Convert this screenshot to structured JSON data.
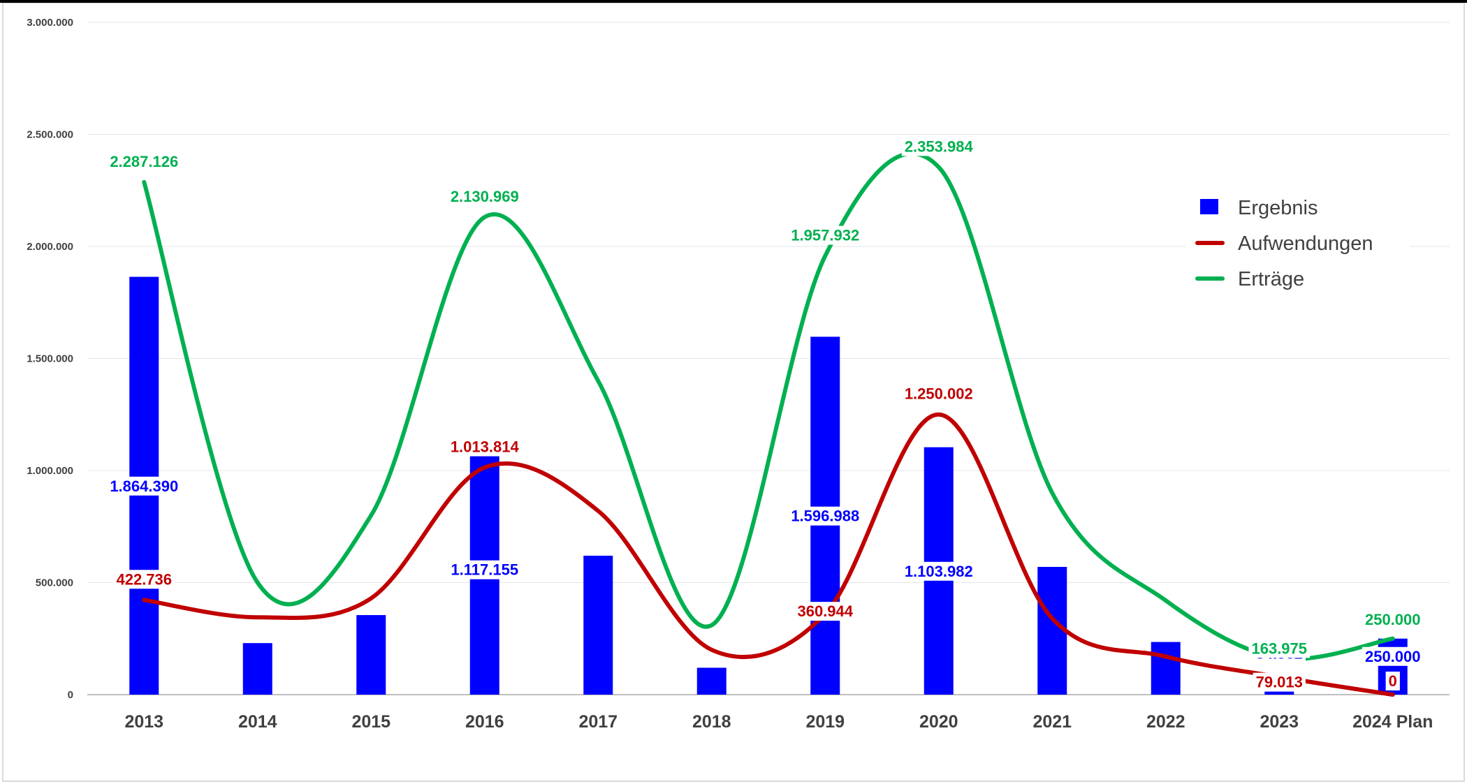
{
  "chart_data": {
    "type": "bar",
    "categories": [
      "2013",
      "2014",
      "2015",
      "2016",
      "2017",
      "2018",
      "2019",
      "2020",
      "2021",
      "2022",
      "2023",
      "2024 Plan"
    ],
    "ylim": [
      0,
      3000000
    ],
    "y_ticks": [
      0,
      500000,
      1000000,
      1500000,
      2000000,
      2500000,
      3000000
    ],
    "y_tick_labels": [
      "0",
      "500.000",
      "1.000.000",
      "1.500.000",
      "2.000.000",
      "2.500.000",
      "3.000.000"
    ],
    "grid": true,
    "legend_position": "top-right",
    "series": [
      {
        "name": "Ergebnis",
        "kind": "bar",
        "color": "#0000ff",
        "values": [
          1864390,
          230000,
          355000,
          1117155,
          620000,
          120000,
          1596988,
          1103982,
          570000,
          235000,
          84962,
          250000
        ],
        "data_labels": [
          "1.864.390",
          "",
          "",
          "1.117.155",
          "",
          "",
          "1.596.988",
          "1.103.982",
          "",
          "",
          "84.962",
          "250.000"
        ]
      },
      {
        "name": "Aufwendungen",
        "kind": "line",
        "color": "#c00000",
        "values": [
          422736,
          345000,
          430000,
          1013814,
          820000,
          200000,
          360944,
          1250002,
          340000,
          170000,
          79013,
          0
        ],
        "data_labels": [
          "422.736",
          "",
          "",
          "1.013.814",
          "",
          "",
          "360.944",
          "1.250.002",
          "",
          "",
          "79.013",
          "0"
        ]
      },
      {
        "name": "Erträge",
        "kind": "line",
        "color": "#00b050",
        "values": [
          2287126,
          500000,
          800000,
          2130969,
          1400000,
          310000,
          1957932,
          2353984,
          900000,
          420000,
          163975,
          250000
        ],
        "data_labels": [
          "2.287.126",
          "",
          "",
          "2.130.969",
          "",
          "",
          "1.957.932",
          "2.353.984",
          "",
          "",
          "163.975",
          "250.000"
        ]
      }
    ]
  }
}
